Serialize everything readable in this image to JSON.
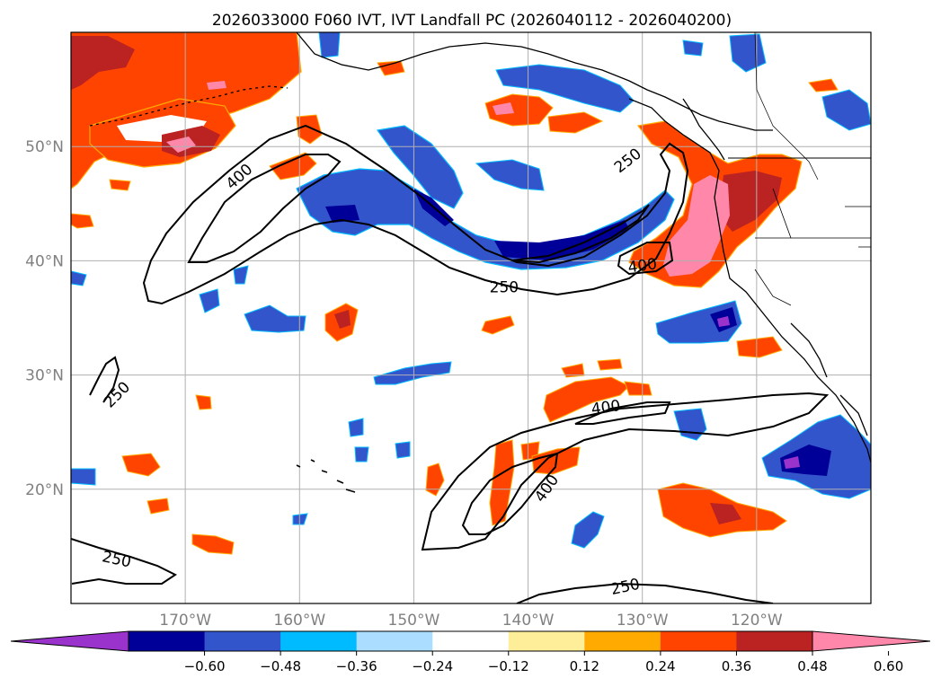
{
  "title": "2026033000 F060 IVT, IVT Landfall PC (2026040112 - 2026040200)",
  "map": {
    "lon_range": [
      -180,
      -110
    ],
    "lat_range": [
      10,
      60
    ],
    "lon_ticks": [
      {
        "lon": -170,
        "label": "170°W"
      },
      {
        "lon": -160,
        "label": "160°W"
      },
      {
        "lon": -150,
        "label": "150°W"
      },
      {
        "lon": -140,
        "label": "140°W"
      },
      {
        "lon": -130,
        "label": "130°W"
      },
      {
        "lon": -120,
        "label": "120°W"
      }
    ],
    "lat_ticks": [
      {
        "lat": 50,
        "label": "50°N"
      },
      {
        "lat": 40,
        "label": "40°N"
      },
      {
        "lat": 30,
        "label": "30°N"
      },
      {
        "lat": 20,
        "label": "20°N"
      }
    ],
    "grid": true,
    "tick_label_color": "#808080"
  },
  "contour_labels": [
    {
      "text": "400",
      "lon": -165.3,
      "lat": 47.4,
      "rotate": -42
    },
    {
      "text": "250",
      "lon": -131.3,
      "lat": 48.8,
      "rotate": -38
    },
    {
      "text": "250",
      "lon": -142.1,
      "lat": 37.7,
      "rotate": 0
    },
    {
      "text": "400",
      "lon": -130.0,
      "lat": 39.6,
      "rotate": -8
    },
    {
      "text": "250",
      "lon": -176.0,
      "lat": 28.3,
      "rotate": -45
    },
    {
      "text": "400",
      "lon": -133.2,
      "lat": 27.2,
      "rotate": -8
    },
    {
      "text": "400",
      "lon": -138.4,
      "lat": 20.1,
      "rotate": -55
    },
    {
      "text": "250",
      "lon": -176.0,
      "lat": 13.9,
      "rotate": 12
    },
    {
      "text": "250",
      "lon": -131.5,
      "lat": 11.5,
      "rotate": -12
    }
  ],
  "colorbar": {
    "colors": [
      "#9933cc",
      "#000099",
      "#3355cc",
      "#00bbff",
      "#aaddff",
      "#ffffff",
      "#ffee99",
      "#ffaa00",
      "#ff4400",
      "#bb2222",
      "#ff88aa"
    ],
    "extend": "both",
    "ticks": [
      "−0.60",
      "−0.48",
      "−0.36",
      "−0.24",
      "−0.12",
      "0.12",
      "0.24",
      "0.36",
      "0.48",
      "0.60"
    ]
  }
}
